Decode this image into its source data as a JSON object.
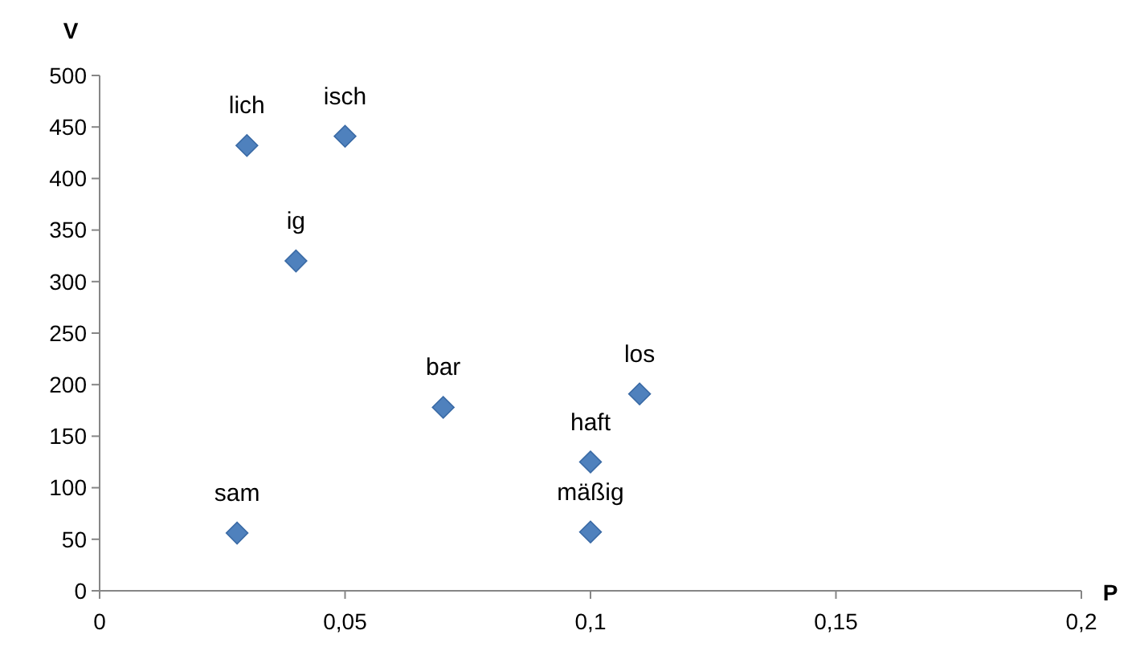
{
  "chart_data": {
    "type": "scatter",
    "xlabel": "P",
    "ylabel": "V",
    "x": [
      0.028,
      0.03,
      0.04,
      0.05,
      0.07,
      0.1,
      0.1,
      0.11
    ],
    "series": [
      {
        "color": "#4f81bd",
        "values": [
          56,
          432,
          320,
          441,
          178,
          125,
          57,
          191
        ]
      }
    ],
    "marker": "diamond",
    "grid": false,
    "xlim": [
      0,
      0.2
    ],
    "xticks": [
      0,
      {
        "value": 0.05,
        "label": "0,05"
      },
      {
        "value": 0.1,
        "label": "0,1"
      },
      {
        "value": 0.15,
        "label": "0,15"
      },
      {
        "value": 0.2,
        "label": "0,2"
      }
    ],
    "ylim": [
      0,
      500
    ],
    "yticks": [
      0,
      50,
      100,
      150,
      200,
      250,
      300,
      350,
      400,
      450,
      500
    ],
    "annotations": [
      {
        "text": "sam",
        "x": 0.028,
        "y": 56
      },
      {
        "text": "lich",
        "x": 0.03,
        "y": 432
      },
      {
        "text": "ig",
        "x": 0.04,
        "y": 320
      },
      {
        "text": "isch",
        "x": 0.05,
        "y": 441
      },
      {
        "text": "bar",
        "x": 0.07,
        "y": 178
      },
      {
        "text": "haft",
        "x": 0.1,
        "y": 125
      },
      {
        "text": "mäßig",
        "x": 0.1,
        "y": 57
      },
      {
        "text": "los",
        "x": 0.11,
        "y": 191
      }
    ]
  }
}
